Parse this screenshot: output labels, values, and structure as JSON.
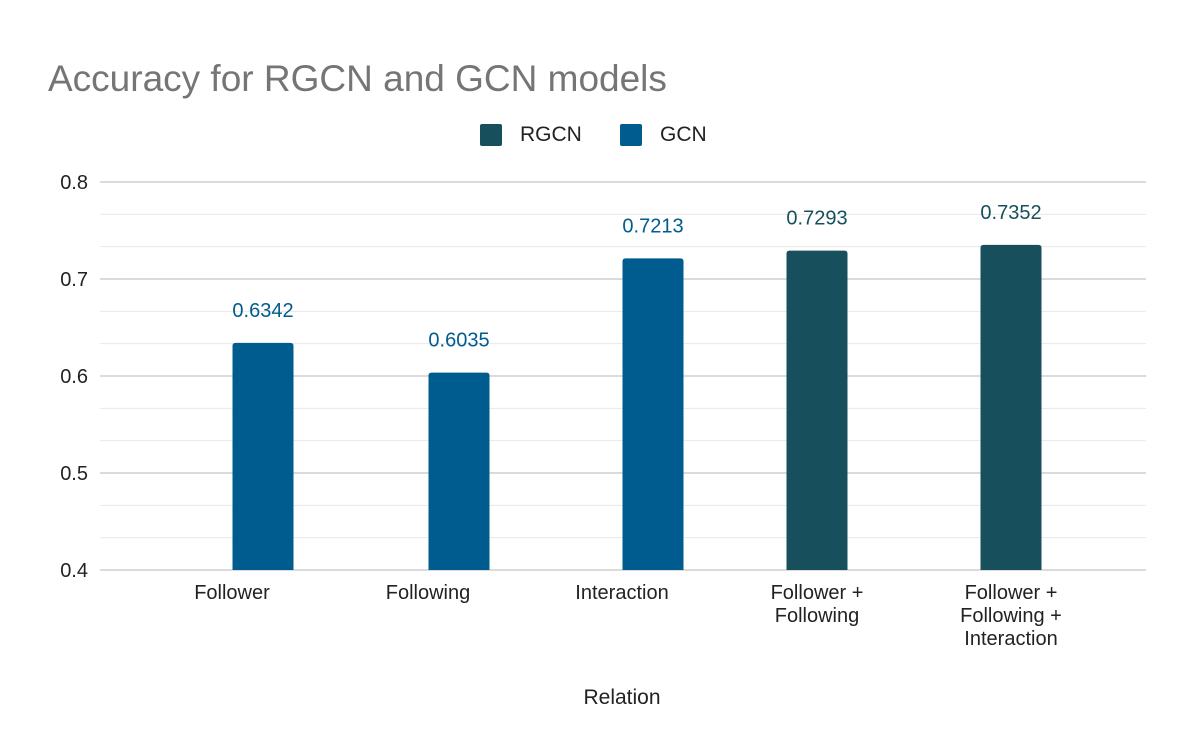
{
  "chart_data": {
    "type": "bar",
    "title": "Accuracy for RGCN and GCN models",
    "xlabel": "Relation",
    "ylabel": "",
    "ylim": [
      0.4,
      0.8
    ],
    "yticks": [
      "0.8",
      "0.7",
      "0.6",
      "0.5",
      "0.4"
    ],
    "grid": true,
    "legend_position": "top-center",
    "categories": [
      [
        "Follower"
      ],
      [
        "Following"
      ],
      [
        "Interaction"
      ],
      [
        "Follower +",
        "Following"
      ],
      [
        "Follower +",
        "Following +",
        "Interaction"
      ]
    ],
    "series": [
      {
        "name": "RGCN",
        "color": "#17505c",
        "values": [
          null,
          null,
          null,
          0.7293,
          0.7352
        ],
        "labels": [
          "",
          "",
          "",
          "0.7293",
          "0.7352"
        ]
      },
      {
        "name": "GCN",
        "color": "#005b8f",
        "values": [
          0.6342,
          0.6035,
          0.7213,
          null,
          null
        ],
        "labels": [
          "0.6342",
          "0.6035",
          "0.7213",
          "",
          ""
        ]
      }
    ],
    "colors": {
      "title": "#757575",
      "axis_text": "#222222",
      "major_grid": "#cfcfcf",
      "minor_grid": "#e8e8e8"
    }
  }
}
